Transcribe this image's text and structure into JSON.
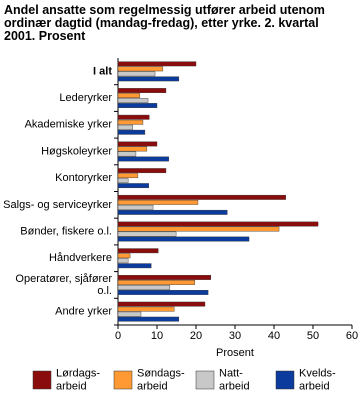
{
  "chart_data": {
    "type": "hbar",
    "title": "Andel ansatte som regelmessig utfører arbeid utenom\nordinær dagtid (mandag-fredag), etter yrke. 2. kvartal\n2001. Prosent",
    "categories": [
      "I alt",
      "Lederyrker",
      "Akademiske yrker",
      "Høgskoleyrker",
      "Kontoryrker",
      "Salgs- og serviceyrker",
      "Bønder, fiskere o.l.",
      "Håndverkere",
      "Operatører, sjåfører\no.l.",
      "Andre yrker"
    ],
    "series": [
      {
        "name": "Lørdags-\narbeid",
        "color": "#8b0c0c",
        "values": [
          20,
          12.3,
          8,
          10,
          12.3,
          43,
          51.3,
          10.3,
          23.8,
          22.3
        ]
      },
      {
        "name": "Søndags-\narbeid",
        "color": "#ff9933",
        "values": [
          11.5,
          5.6,
          6.4,
          7.4,
          5.1,
          20.5,
          41.3,
          3.1,
          19.7,
          14.4
        ]
      },
      {
        "name": "Natt-\narbeid",
        "color": "#c8c8c8",
        "values": [
          9.5,
          7.7,
          3.8,
          4.6,
          2.6,
          9,
          14.9,
          2.6,
          13.3,
          5.9
        ]
      },
      {
        "name": "Kvelds-\narbeid",
        "color": "#0b3b9c",
        "values": [
          15.6,
          10,
          6.9,
          13,
          7.9,
          28,
          33.6,
          8.5,
          23.1,
          15.6
        ]
      }
    ],
    "xlabel": "Prosent",
    "xlim": [
      0,
      60
    ],
    "xticks": [
      0,
      10,
      20,
      30,
      40,
      50,
      60
    ]
  }
}
